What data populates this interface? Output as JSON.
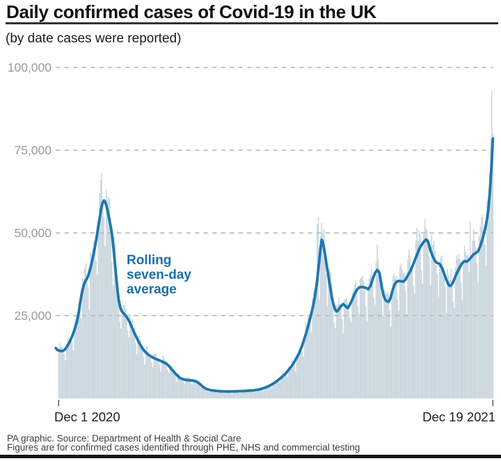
{
  "chart_data": {
    "type": "bar",
    "title": "Daily confirmed cases of Covid-19 in the UK",
    "subtitle": "(by date cases were reported)",
    "x_axis": {
      "start_label": "Dec 1 2020",
      "end_label": "Dec 19 2021",
      "total_days": 383,
      "tick_positions_days": [
        0,
        383
      ]
    },
    "y_axis": {
      "ylim": [
        0,
        105000
      ],
      "gridlines": "dashed",
      "ticks": [
        {
          "value": 25000,
          "label": "25,000"
        },
        {
          "value": 50000,
          "label": "50,000"
        },
        {
          "value": 75000,
          "label": "75,000"
        },
        {
          "value": 100000,
          "label": "100,000"
        }
      ]
    },
    "annotation": {
      "lines": [
        "Rolling",
        "seven-day",
        "average"
      ],
      "color": "#1a6fa9"
    },
    "colors": {
      "bars": "#ccd8df",
      "line": "#1d77af",
      "grid": "#b4b4b4",
      "tick": "#4d4d4d"
    },
    "series": [
      {
        "name": "Daily confirmed cases",
        "style": "bars",
        "derived_from": "rolling_average",
        "weekday_of_day0": 1,
        "weekday_multipliers": [
          0.74,
          1.06,
          1.12,
          1.1,
          1.08,
          1.02,
          0.88
        ],
        "noise": 0.14,
        "outliers": {
          "38": 68200,
          "228": 52500,
          "229": 54800,
          "323": 54200,
          "363": 53500,
          "381": 78000,
          "382": 93000,
          "383": 80000
        }
      },
      {
        "name": "Rolling seven-day average",
        "style": "line",
        "points": [
          [
            -2.5,
            15200
          ],
          [
            -1,
            14600
          ],
          [
            0,
            14500
          ],
          [
            2,
            14300
          ],
          [
            4,
            14400
          ],
          [
            6,
            15000
          ],
          [
            8,
            16000
          ],
          [
            10,
            17300
          ],
          [
            12,
            18900
          ],
          [
            14,
            20800
          ],
          [
            16,
            23000
          ],
          [
            18,
            26500
          ],
          [
            19,
            29000
          ],
          [
            20,
            31000
          ],
          [
            21,
            32700
          ],
          [
            22,
            34000
          ],
          [
            23,
            35000
          ],
          [
            24,
            35700
          ],
          [
            25,
            36200
          ],
          [
            26,
            37000
          ],
          [
            27,
            38100
          ],
          [
            28,
            39400
          ],
          [
            29,
            40800
          ],
          [
            30,
            42300
          ],
          [
            31,
            43900
          ],
          [
            32,
            45700
          ],
          [
            33,
            47700
          ],
          [
            34,
            49800
          ],
          [
            35,
            52000
          ],
          [
            36,
            54200
          ],
          [
            37,
            56300
          ],
          [
            38,
            58100
          ],
          [
            39,
            59300
          ],
          [
            40,
            59800
          ],
          [
            41,
            59400
          ],
          [
            42,
            58400
          ],
          [
            43,
            57000
          ],
          [
            44,
            55300
          ],
          [
            45,
            53500
          ],
          [
            46,
            51800
          ],
          [
            47,
            49700
          ],
          [
            48,
            46700
          ],
          [
            49,
            43200
          ],
          [
            50,
            39500
          ],
          [
            51,
            35900
          ],
          [
            52,
            32500
          ],
          [
            53,
            29800
          ],
          [
            54,
            28000
          ],
          [
            55,
            26900
          ],
          [
            56,
            26200
          ],
          [
            58,
            25400
          ],
          [
            60,
            24600
          ],
          [
            62,
            23500
          ],
          [
            64,
            22000
          ],
          [
            66,
            20400
          ],
          [
            68,
            18900
          ],
          [
            70,
            17500
          ],
          [
            72,
            16200
          ],
          [
            74,
            15100
          ],
          [
            76,
            14200
          ],
          [
            78,
            13500
          ],
          [
            80,
            13000
          ],
          [
            83,
            12400
          ],
          [
            86,
            11900
          ],
          [
            89,
            11500
          ],
          [
            92,
            11000
          ],
          [
            95,
            10500
          ],
          [
            97,
            9900
          ],
          [
            99,
            9100
          ],
          [
            101,
            8300
          ],
          [
            103,
            7500
          ],
          [
            105,
            6800
          ],
          [
            107,
            6200
          ],
          [
            109,
            5900
          ],
          [
            112,
            5600
          ],
          [
            115,
            5500
          ],
          [
            118,
            5400
          ],
          [
            121,
            5200
          ],
          [
            123,
            4800
          ],
          [
            125,
            4200
          ],
          [
            127,
            3600
          ],
          [
            129,
            3100
          ],
          [
            131,
            2800
          ],
          [
            134,
            2500
          ],
          [
            137,
            2350
          ],
          [
            140,
            2250
          ],
          [
            144,
            2150
          ],
          [
            148,
            2100
          ],
          [
            152,
            2100
          ],
          [
            156,
            2150
          ],
          [
            160,
            2200
          ],
          [
            164,
            2250
          ],
          [
            168,
            2350
          ],
          [
            172,
            2450
          ],
          [
            176,
            2650
          ],
          [
            180,
            3000
          ],
          [
            184,
            3500
          ],
          [
            188,
            4200
          ],
          [
            192,
            5100
          ],
          [
            196,
            6200
          ],
          [
            200,
            7400
          ],
          [
            203,
            8700
          ],
          [
            206,
            10000
          ],
          [
            209,
            11700
          ],
          [
            212,
            13600
          ],
          [
            215,
            16200
          ],
          [
            218,
            19400
          ],
          [
            221,
            23100
          ],
          [
            224,
            27200
          ],
          [
            226,
            30600
          ],
          [
            228,
            35500
          ],
          [
            230,
            42000
          ],
          [
            231,
            45500
          ],
          [
            232,
            47900
          ],
          [
            233,
            47300
          ],
          [
            234,
            45500
          ],
          [
            235,
            43500
          ],
          [
            236,
            41200
          ],
          [
            237,
            39000
          ],
          [
            238,
            36800
          ],
          [
            239,
            34600
          ],
          [
            240,
            32600
          ],
          [
            241,
            30600
          ],
          [
            242,
            28900
          ],
          [
            243,
            27700
          ],
          [
            244,
            26800
          ],
          [
            245,
            26300
          ],
          [
            246,
            26400
          ],
          [
            247,
            26900
          ],
          [
            249,
            27900
          ],
          [
            251,
            28500
          ],
          [
            253,
            27900
          ],
          [
            255,
            27300
          ],
          [
            257,
            28400
          ],
          [
            259,
            29900
          ],
          [
            261,
            31500
          ],
          [
            263,
            32800
          ],
          [
            265,
            33500
          ],
          [
            267,
            33700
          ],
          [
            269,
            33600
          ],
          [
            271,
            33400
          ],
          [
            273,
            33000
          ],
          [
            275,
            33900
          ],
          [
            277,
            36000
          ],
          [
            279,
            37900
          ],
          [
            281,
            38800
          ],
          [
            282,
            38500
          ],
          [
            283,
            37800
          ],
          [
            284,
            35800
          ],
          [
            285,
            33800
          ],
          [
            286,
            31900
          ],
          [
            287,
            30700
          ],
          [
            288,
            29900
          ],
          [
            289,
            29500
          ],
          [
            290,
            29200
          ],
          [
            291,
            29200
          ],
          [
            292,
            29700
          ],
          [
            293,
            30700
          ],
          [
            294,
            32000
          ],
          [
            295,
            33200
          ],
          [
            296,
            34200
          ],
          [
            297,
            34800
          ],
          [
            298,
            35200
          ],
          [
            300,
            35500
          ],
          [
            302,
            35400
          ],
          [
            304,
            35300
          ],
          [
            306,
            35900
          ],
          [
            308,
            37200
          ],
          [
            310,
            38300
          ],
          [
            312,
            39900
          ],
          [
            314,
            41700
          ],
          [
            316,
            43300
          ],
          [
            318,
            45100
          ],
          [
            320,
            46300
          ],
          [
            322,
            47300
          ],
          [
            324,
            48000
          ],
          [
            325,
            47800
          ],
          [
            326,
            47200
          ],
          [
            328,
            44700
          ],
          [
            330,
            42900
          ],
          [
            332,
            41500
          ],
          [
            334,
            40900
          ],
          [
            336,
            40700
          ],
          [
            338,
            39500
          ],
          [
            340,
            37800
          ],
          [
            342,
            35800
          ],
          [
            344,
            34300
          ],
          [
            345,
            34000
          ],
          [
            346,
            34100
          ],
          [
            347,
            34500
          ],
          [
            348,
            35200
          ],
          [
            350,
            36900
          ],
          [
            352,
            38400
          ],
          [
            354,
            39800
          ],
          [
            356,
            40900
          ],
          [
            358,
            41500
          ],
          [
            360,
            41300
          ],
          [
            362,
            41900
          ],
          [
            364,
            42700
          ],
          [
            366,
            43500
          ],
          [
            368,
            43900
          ],
          [
            370,
            44500
          ],
          [
            372,
            46100
          ],
          [
            374,
            48300
          ],
          [
            376,
            51000
          ],
          [
            377,
            52600
          ],
          [
            378,
            54600
          ],
          [
            379,
            57200
          ],
          [
            380,
            60800
          ],
          [
            381,
            65500
          ],
          [
            382,
            71500
          ],
          [
            383,
            78500
          ]
        ]
      }
    ]
  },
  "footer": {
    "line1": "PA graphic. Source: Department of Health & Social Care",
    "line2": "Figures are for confirmed cases identified through PHE, NHS and commercial testing"
  }
}
